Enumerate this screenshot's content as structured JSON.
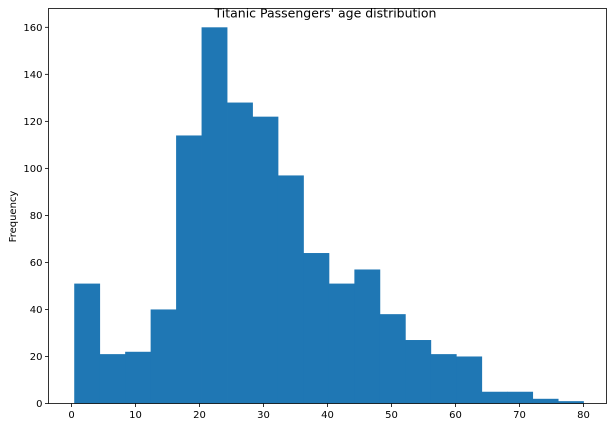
{
  "chart_data": {
    "type": "bar",
    "title": "Titanic Passengers' age distribution",
    "xlabel": "",
    "ylabel": "Frequency",
    "xlim": [
      -3.6,
      83.6
    ],
    "ylim": [
      0,
      168
    ],
    "xticks": [
      0,
      10,
      20,
      30,
      40,
      50,
      60,
      70,
      80
    ],
    "yticks": [
      0,
      20,
      40,
      60,
      80,
      100,
      120,
      140,
      160
    ],
    "bin_edges": [
      0.42,
      4.4,
      8.38,
      12.36,
      16.34,
      20.32,
      24.3,
      28.28,
      32.26,
      36.24,
      40.22,
      44.2,
      48.18,
      52.16,
      56.14,
      60.12,
      64.1,
      68.08,
      72.06,
      76.04,
      80.0
    ],
    "values": [
      51,
      21,
      22,
      40,
      114,
      160,
      128,
      122,
      97,
      64,
      51,
      57,
      38,
      27,
      21,
      20,
      5,
      5,
      2,
      1
    ],
    "bar_color": "#1f77b4",
    "grid": false,
    "legend": "none"
  }
}
